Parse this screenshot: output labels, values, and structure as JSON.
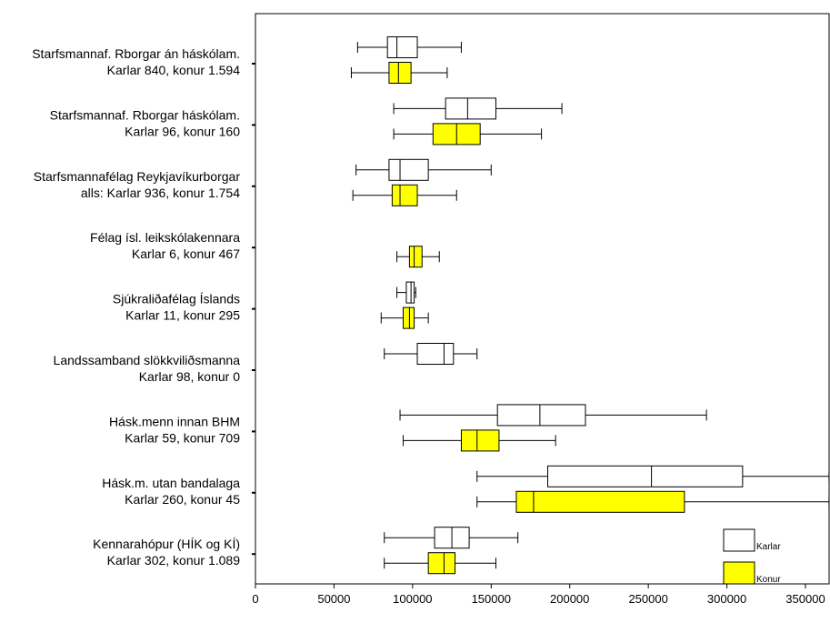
{
  "chart_data": {
    "type": "boxplot",
    "orientation": "horizontal",
    "title": "",
    "xlabel": "",
    "ylabel": "",
    "xlim": [
      0,
      350000
    ],
    "x_ticks": [
      0,
      50000,
      100000,
      150000,
      200000,
      250000,
      300000,
      350000
    ],
    "x_tick_labels": [
      "0",
      "50000",
      "100000",
      "150000",
      "200000",
      "250000",
      "300000",
      "350000"
    ],
    "grid": false,
    "legend_position": "bottom-right",
    "series": [
      {
        "name": "Karlar",
        "color": "#ffffff"
      },
      {
        "name": "Konur",
        "color": "#ffff00"
      }
    ],
    "categories": [
      {
        "label_lines": [
          "Starfsmannaf. Rborgar án háskólam.",
          "Karlar 840, konur 1.594"
        ],
        "karlar": {
          "whisker_low": 65000,
          "q1": 84000,
          "median": 90000,
          "q3": 103000,
          "whisker_high": 131000
        },
        "konur": {
          "whisker_low": 61000,
          "q1": 85000,
          "median": 91000,
          "q3": 99000,
          "whisker_high": 122000
        }
      },
      {
        "label_lines": [
          "Starfsmannaf. Rborgar háskólam.",
          "Karlar 96, konur 160"
        ],
        "karlar": {
          "whisker_low": 88000,
          "q1": 121000,
          "median": 135000,
          "q3": 153000,
          "whisker_high": 195000
        },
        "konur": {
          "whisker_low": 88000,
          "q1": 113000,
          "median": 128000,
          "q3": 143000,
          "whisker_high": 182000
        }
      },
      {
        "label_lines": [
          "Starfsmannafélag Reykjavíkurborgar",
          "alls: Karlar 936, konur 1.754"
        ],
        "karlar": {
          "whisker_low": 64000,
          "q1": 85000,
          "median": 92000,
          "q3": 110000,
          "whisker_high": 150000
        },
        "konur": {
          "whisker_low": 62000,
          "q1": 87000,
          "median": 92000,
          "q3": 103000,
          "whisker_high": 128000
        }
      },
      {
        "label_lines": [
          "Félag ísl. leikskólakennara",
          "Karlar 6, konur 467"
        ],
        "karlar": null,
        "konur": {
          "whisker_low": 90000,
          "q1": 98000,
          "median": 101000,
          "q3": 106000,
          "whisker_high": 117000
        }
      },
      {
        "label_lines": [
          "Sjúkraliðafélag Íslands",
          "Karlar 11, konur 295"
        ],
        "karlar": {
          "whisker_low": 90000,
          "q1": 96000,
          "median": 99000,
          "q3": 101000,
          "whisker_high": 102000
        },
        "konur": {
          "whisker_low": 80000,
          "q1": 94000,
          "median": 98000,
          "q3": 101000,
          "whisker_high": 110000
        }
      },
      {
        "label_lines": [
          "Landssamband slökkviliðsmanna",
          "Karlar 98, konur 0"
        ],
        "karlar": {
          "whisker_low": 82000,
          "q1": 103000,
          "median": 120000,
          "q3": 126000,
          "whisker_high": 141000
        },
        "konur": null
      },
      {
        "label_lines": [
          "Hásk.menn innan BHM",
          "Karlar 59, konur 709"
        ],
        "karlar": {
          "whisker_low": 92000,
          "q1": 154000,
          "median": 181000,
          "q3": 210000,
          "whisker_high": 287000
        },
        "konur": {
          "whisker_low": 94000,
          "q1": 131000,
          "median": 141000,
          "q3": 155000,
          "whisker_high": 191000
        }
      },
      {
        "label_lines": [
          "Hásk.m. utan bandalaga",
          "Karlar 260, konur 45"
        ],
        "karlar": {
          "whisker_low": 141000,
          "q1": 186000,
          "median": 252000,
          "q3": 310000,
          "whisker_high": 365000
        },
        "konur": {
          "whisker_low": 141000,
          "q1": 166000,
          "median": 177000,
          "q3": 273000,
          "whisker_high": 365000
        }
      },
      {
        "label_lines": [
          "Kennarahópur (HÍK og KÍ)",
          "Karlar 302, konur 1.089"
        ],
        "karlar": {
          "whisker_low": 82000,
          "q1": 114000,
          "median": 125000,
          "q3": 136000,
          "whisker_high": 167000
        },
        "konur": {
          "whisker_low": 82000,
          "q1": 110000,
          "median": 120000,
          "q3": 127000,
          "whisker_high": 153000
        }
      }
    ]
  }
}
